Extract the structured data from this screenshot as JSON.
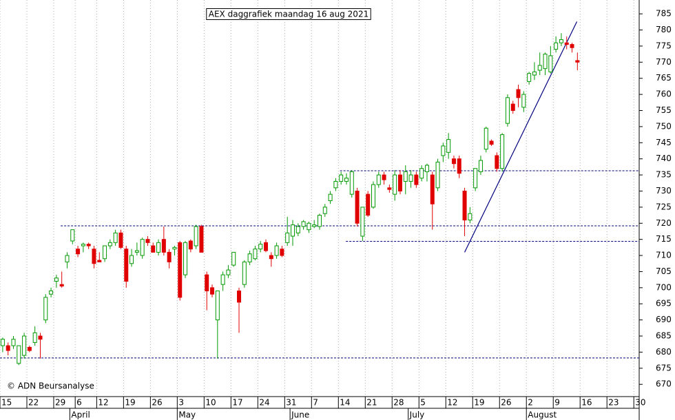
{
  "chart_data": {
    "type": "candlestick",
    "title": "AEX daggrafiek maandag 16 aug 2021",
    "annotation": "© ADN Beursanalyse",
    "up_color": "#009900",
    "down_color": "#e00000",
    "level_color": "#000080",
    "grid": true,
    "open": [
      682,
      682,
      682,
      676.5,
      679,
      681.5,
      683,
      685,
      690,
      698,
      702,
      701,
      708,
      714.5,
      712,
      713,
      713.5,
      712,
      708.5,
      709,
      713,
      714,
      717,
      712,
      707.5,
      711,
      710,
      715,
      713,
      711,
      715,
      711,
      712,
      714,
      704,
      714.5,
      713,
      719,
      704,
      700,
      690,
      701,
      704,
      707,
      699,
      701,
      708,
      709,
      712,
      714,
      710,
      710,
      712,
      714,
      716,
      717,
      719,
      718,
      719,
      719,
      723,
      727,
      731,
      733,
      733,
      729,
      730,
      716,
      729,
      725,
      732,
      735,
      731,
      729,
      735,
      733,
      733,
      735,
      734,
      736,
      735,
      731,
      741,
      742,
      740,
      740,
      730,
      721,
      731,
      736,
      743,
      745.5,
      741,
      737,
      751,
      757,
      761.5,
      756,
      764,
      766,
      767.5,
      768,
      767,
      774,
      776,
      776,
      775.5,
      770.5
    ],
    "high": [
      684.5,
      683,
      685,
      682,
      686,
      682,
      688,
      686,
      698,
      700,
      704,
      705,
      711,
      718,
      713,
      714,
      714,
      713,
      711,
      713,
      715,
      718,
      718,
      713,
      712,
      714,
      715.5,
      716,
      714,
      715,
      719,
      712,
      713,
      714.5,
      714.5,
      715,
      719.5,
      719.5,
      705,
      701,
      699,
      705,
      707,
      711,
      700,
      708.5,
      711.5,
      713,
      714.5,
      715,
      711,
      714,
      713,
      722,
      721,
      720,
      721,
      720.5,
      721,
      723,
      726,
      730,
      734,
      736,
      735.5,
      736.5,
      731,
      725,
      730,
      733,
      736,
      736,
      732,
      736.5,
      736.5,
      738,
      736.5,
      736,
      738,
      738.5,
      736,
      740,
      745,
      748,
      741,
      741,
      731,
      725,
      737,
      741,
      750,
      746,
      742,
      748,
      760,
      758,
      763,
      761,
      767,
      770,
      773,
      773,
      775,
      778,
      779,
      778,
      776,
      773
    ],
    "low": [
      680,
      679,
      681,
      676,
      678,
      680,
      682,
      678,
      689,
      697,
      700,
      700,
      706,
      713.5,
      709.5,
      711,
      712,
      706,
      708,
      708,
      712,
      713,
      712,
      700,
      706.5,
      710,
      709,
      713,
      711,
      710,
      710,
      706,
      710,
      696,
      703,
      711,
      712,
      711,
      693,
      697,
      678,
      699,
      703,
      706.5,
      686,
      700,
      707,
      708.5,
      711,
      711,
      706.5,
      709,
      709.5,
      713,
      713,
      716,
      718,
      717,
      718.5,
      718,
      722,
      726,
      730,
      732,
      732,
      728,
      719,
      714.5,
      722,
      724.5,
      731,
      732,
      729.5,
      727,
      729,
      729,
      731,
      731,
      733,
      733,
      718,
      730,
      739,
      740,
      737,
      734,
      716,
      720,
      730,
      735,
      742,
      744,
      736,
      736,
      750,
      754,
      756,
      754.5,
      763,
      764.5,
      766,
      766,
      766.5,
      773,
      775,
      774,
      773,
      767.5
    ],
    "close": [
      684,
      680.5,
      684,
      682,
      685,
      680.5,
      686,
      684,
      697,
      699,
      703,
      700.5,
      710,
      718,
      710.5,
      713.5,
      713,
      707.5,
      708,
      713,
      714,
      717,
      712.5,
      702,
      710,
      711.5,
      715,
      714,
      711,
      714,
      711,
      708,
      712.5,
      697,
      714,
      712,
      719,
      711,
      699,
      698,
      699,
      704,
      705.5,
      711,
      695.5,
      708,
      710.5,
      712,
      713.5,
      711.5,
      709,
      713,
      710,
      717,
      719.5,
      719,
      720.5,
      720,
      719.5,
      722.5,
      725,
      729,
      733,
      735,
      734,
      736,
      720,
      725,
      722.5,
      732,
      735,
      733.5,
      730.5,
      735,
      730,
      736,
      735,
      732,
      737,
      738,
      726,
      739,
      744,
      746,
      738.5,
      735.5,
      721,
      723,
      737,
      739.5,
      749.5,
      744.5,
      737,
      747.5,
      759,
      755,
      759,
      760,
      766.5,
      767,
      769,
      772.5,
      772,
      776,
      777,
      775.5,
      774.5,
      770
    ],
    "xlim": [
      -0.5,
      118.5
    ],
    "xticks": [
      {
        "value": -0.5,
        "label": "15"
      },
      {
        "value": 4.5,
        "label": "22"
      },
      {
        "value": 9.5,
        "label": "29"
      },
      {
        "value": 13.5,
        "label": "6"
      },
      {
        "value": 17.5,
        "label": "12"
      },
      {
        "value": 22.5,
        "label": "19"
      },
      {
        "value": 27.5,
        "label": "26"
      },
      {
        "value": 32.5,
        "label": "3"
      },
      {
        "value": 37.5,
        "label": "10"
      },
      {
        "value": 42.5,
        "label": "17"
      },
      {
        "value": 47.5,
        "label": "24"
      },
      {
        "value": 52.5,
        "label": "31"
      },
      {
        "value": 57.5,
        "label": "7"
      },
      {
        "value": 62.5,
        "label": "14"
      },
      {
        "value": 67.5,
        "label": "21"
      },
      {
        "value": 72.5,
        "label": "28"
      },
      {
        "value": 77.5,
        "label": "5"
      },
      {
        "value": 82.5,
        "label": "12"
      },
      {
        "value": 87.5,
        "label": "19"
      },
      {
        "value": 92.5,
        "label": "26"
      },
      {
        "value": 97.5,
        "label": "2"
      },
      {
        "value": 102.5,
        "label": "9"
      },
      {
        "value": 107.5,
        "label": "16"
      },
      {
        "value": 112.5,
        "label": "23"
      },
      {
        "value": 117.5,
        "label": "30"
      }
    ],
    "month_ticks": [
      {
        "value": 12.5,
        "label": "April"
      },
      {
        "value": 32.5,
        "label": "May"
      },
      {
        "value": 53.5,
        "label": "June"
      },
      {
        "value": 75.5,
        "label": "July"
      },
      {
        "value": 97.5,
        "label": "August"
      }
    ],
    "ylim": [
      666.2,
      789.3
    ],
    "yticks": [
      670,
      675,
      680,
      685,
      690,
      695,
      700,
      705,
      710,
      715,
      720,
      725,
      730,
      735,
      740,
      745,
      750,
      755,
      760,
      765,
      770,
      775,
      780,
      785
    ],
    "levels": [
      {
        "value": 719.2,
        "from": 10.8
      },
      {
        "value": 736.3,
        "from": 62.8
      },
      {
        "value": 714.4,
        "from": 63.9
      },
      {
        "value": 678.2,
        "from": -0.5
      }
    ],
    "trendline": {
      "x": [
        86,
        106.9
      ],
      "y": [
        711,
        782.6
      ]
    }
  }
}
